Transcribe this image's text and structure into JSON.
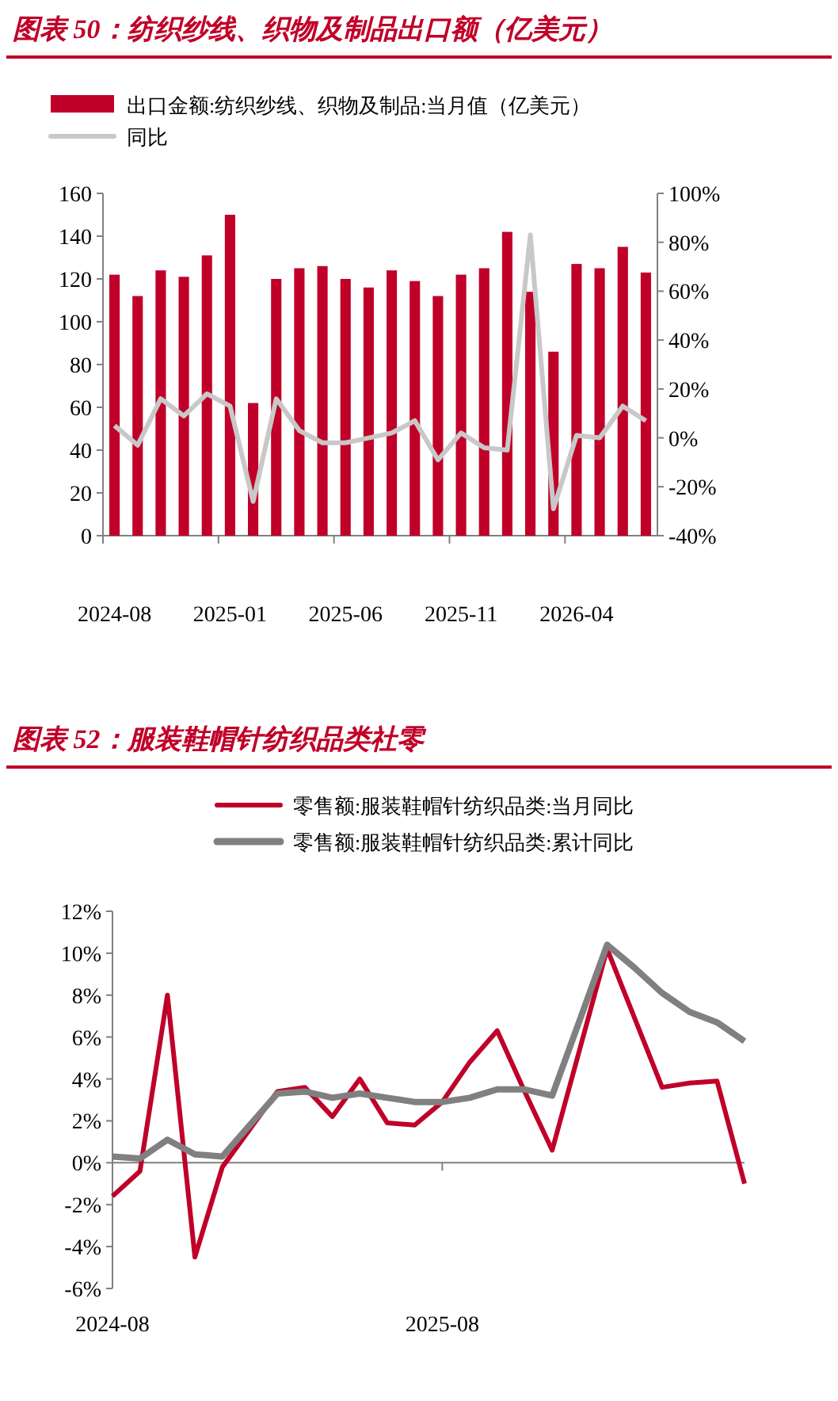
{
  "chart_data": [
    {
      "type": "bar",
      "title": "图表 50：纺织纱线、织物及制品出口额（亿美元）",
      "legend": "top left",
      "categories": [
        "2024-08",
        null,
        null,
        null,
        null,
        "2025-01",
        null,
        null,
        null,
        null,
        "2025-06",
        null,
        null,
        null,
        null,
        "2025-11",
        null,
        null,
        null,
        null,
        "2026-04",
        null,
        null,
        null
      ],
      "series": [
        {
          "name": "出口金额:纺织纱线、织物及制品:当月值（亿美元）",
          "color": "#c00028",
          "values": [
            122,
            112,
            124,
            121,
            131,
            150,
            62,
            120,
            125,
            126,
            120,
            116,
            124,
            119,
            112,
            122,
            125,
            142,
            114,
            86,
            127,
            125,
            135,
            123
          ]
        },
        {
          "name": "同比",
          "type": "line",
          "axis": "y2",
          "color": "#c8c8c8",
          "values": [
            5,
            -3,
            16,
            9,
            18,
            13,
            -26,
            16,
            3,
            -2,
            -2,
            0,
            2,
            7,
            -9,
            2,
            -4,
            -5,
            83,
            -29,
            1,
            0,
            13,
            7
          ]
        }
      ],
      "ylim": [
        0,
        160
      ],
      "yticks": [
        0,
        20,
        40,
        60,
        80,
        100,
        120,
        140,
        160
      ],
      "y2lim": [
        -40,
        100
      ],
      "y2ticks": [
        {
          "value": -40,
          "label": "-40%"
        },
        {
          "value": -20,
          "label": "-20%"
        },
        {
          "value": 0,
          "label": "0%"
        },
        {
          "value": 20,
          "label": "20%"
        },
        {
          "value": 40,
          "label": "40%"
        },
        {
          "value": 60,
          "label": "60%"
        },
        {
          "value": 80,
          "label": "80%"
        },
        {
          "value": 100,
          "label": "100%"
        }
      ]
    },
    {
      "type": "line",
      "title": "图表 52：服装鞋帽针纺织品类社零",
      "legend": "top",
      "categories": [
        "2024-08",
        null,
        null,
        null,
        null,
        null,
        null,
        null,
        null,
        null,
        null,
        null,
        "2025-08",
        null,
        null,
        null,
        null,
        null,
        null,
        null,
        null,
        null,
        null,
        null
      ],
      "series": [
        {
          "name": "零售额:服装鞋帽针纺织品类:当月同比",
          "color": "#c00028",
          "values": [
            -1.6,
            -0.4,
            8.0,
            -4.5,
            -0.2,
            1.6,
            3.4,
            3.6,
            2.2,
            4.0,
            1.9,
            1.8,
            2.9,
            4.8,
            6.3,
            3.4,
            0.6,
            5.4,
            10.2,
            6.9,
            3.6,
            3.8,
            3.9,
            -1.0
          ]
        },
        {
          "name": "零售额:服装鞋帽针纺织品类:累计同比",
          "color": "#808080",
          "values": [
            0.3,
            0.2,
            1.1,
            0.4,
            0.3,
            1.8,
            3.3,
            3.4,
            3.1,
            3.3,
            3.1,
            2.9,
            2.9,
            3.1,
            3.5,
            3.5,
            3.2,
            6.8,
            10.4,
            9.3,
            8.1,
            7.2,
            6.7,
            5.8
          ]
        }
      ],
      "ylim": [
        -6,
        12
      ],
      "yticks": [
        {
          "value": -6,
          "label": "-6%"
        },
        {
          "value": -4,
          "label": "-4%"
        },
        {
          "value": -2,
          "label": "-2%"
        },
        {
          "value": 0,
          "label": "0%"
        },
        {
          "value": 2,
          "label": "2%"
        },
        {
          "value": 4,
          "label": "4%"
        },
        {
          "value": 6,
          "label": "6%"
        },
        {
          "value": 8,
          "label": "8%"
        },
        {
          "value": 10,
          "label": "10%"
        },
        {
          "value": 12,
          "label": "12%"
        }
      ]
    }
  ]
}
